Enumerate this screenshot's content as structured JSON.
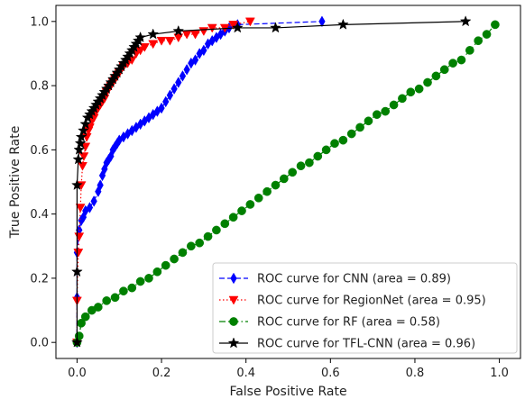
{
  "chart_data": {
    "type": "line",
    "title": "",
    "xlabel": "False Positive Rate",
    "ylabel": "True Positive Rate",
    "xlim": [
      -0.05,
      1.05
    ],
    "ylim": [
      -0.05,
      1.05
    ],
    "x_ticks": [
      0.0,
      0.2,
      0.4,
      0.6,
      0.8,
      1.0
    ],
    "y_ticks": [
      0.0,
      0.2,
      0.4,
      0.6,
      0.8,
      1.0
    ],
    "x_tick_labels": [
      "0.0",
      "0.2",
      "0.4",
      "0.6",
      "0.8",
      "1.0"
    ],
    "y_tick_labels": [
      "0.0",
      "0.2",
      "0.4",
      "0.6",
      "0.8",
      "1.0"
    ],
    "grid": false,
    "legend_position": "lower-right",
    "series": [
      {
        "name": "ROC curve for CNN (area = 0.89)",
        "color": "#0000ff",
        "line_style": "dashed",
        "marker": "diamond",
        "x": [
          0.0,
          0.0,
          0.0,
          0.005,
          0.01,
          0.015,
          0.02,
          0.03,
          0.04,
          0.05,
          0.055,
          0.06,
          0.065,
          0.07,
          0.075,
          0.08,
          0.085,
          0.09,
          0.095,
          0.1,
          0.11,
          0.12,
          0.13,
          0.14,
          0.15,
          0.16,
          0.17,
          0.18,
          0.19,
          0.2,
          0.21,
          0.22,
          0.23,
          0.24,
          0.25,
          0.26,
          0.27,
          0.28,
          0.29,
          0.3,
          0.31,
          0.32,
          0.33,
          0.34,
          0.35,
          0.36,
          0.38,
          0.58
        ],
        "y": [
          0.0,
          0.14,
          0.28,
          0.35,
          0.38,
          0.39,
          0.41,
          0.42,
          0.44,
          0.47,
          0.49,
          0.52,
          0.54,
          0.56,
          0.57,
          0.58,
          0.6,
          0.61,
          0.62,
          0.63,
          0.64,
          0.65,
          0.66,
          0.67,
          0.68,
          0.69,
          0.7,
          0.71,
          0.72,
          0.73,
          0.75,
          0.77,
          0.79,
          0.81,
          0.83,
          0.85,
          0.87,
          0.88,
          0.9,
          0.91,
          0.93,
          0.94,
          0.95,
          0.96,
          0.97,
          0.98,
          0.99,
          1.0
        ]
      },
      {
        "name": "ROC curve for RegionNet (area = 0.95)",
        "color": "#ff0000",
        "line_style": "dotted",
        "marker": "triangle-down",
        "x": [
          0.0,
          0.0,
          0.003,
          0.005,
          0.008,
          0.01,
          0.013,
          0.016,
          0.02,
          0.023,
          0.027,
          0.03,
          0.035,
          0.04,
          0.045,
          0.05,
          0.055,
          0.06,
          0.065,
          0.07,
          0.075,
          0.08,
          0.085,
          0.09,
          0.095,
          0.1,
          0.11,
          0.12,
          0.13,
          0.14,
          0.15,
          0.16,
          0.18,
          0.2,
          0.22,
          0.24,
          0.26,
          0.28,
          0.3,
          0.32,
          0.35,
          0.37,
          0.41
        ],
        "y": [
          0.0,
          0.13,
          0.28,
          0.33,
          0.42,
          0.49,
          0.55,
          0.58,
          0.61,
          0.64,
          0.66,
          0.67,
          0.69,
          0.7,
          0.72,
          0.73,
          0.74,
          0.75,
          0.76,
          0.78,
          0.79,
          0.8,
          0.81,
          0.82,
          0.83,
          0.84,
          0.86,
          0.87,
          0.88,
          0.9,
          0.91,
          0.92,
          0.93,
          0.94,
          0.94,
          0.95,
          0.96,
          0.96,
          0.97,
          0.98,
          0.98,
          0.99,
          1.0
        ]
      },
      {
        "name": "ROC curve for RF (area = 0.58)",
        "color": "#008000",
        "line_style": "dash-dot",
        "marker": "circle",
        "x": [
          0.0,
          0.005,
          0.01,
          0.02,
          0.035,
          0.05,
          0.07,
          0.09,
          0.11,
          0.13,
          0.15,
          0.17,
          0.19,
          0.21,
          0.23,
          0.25,
          0.27,
          0.29,
          0.31,
          0.33,
          0.35,
          0.37,
          0.39,
          0.41,
          0.43,
          0.45,
          0.47,
          0.49,
          0.51,
          0.53,
          0.55,
          0.57,
          0.59,
          0.61,
          0.63,
          0.65,
          0.67,
          0.69,
          0.71,
          0.73,
          0.75,
          0.77,
          0.79,
          0.81,
          0.83,
          0.85,
          0.87,
          0.89,
          0.91,
          0.93,
          0.95,
          0.97,
          0.99
        ],
        "y": [
          0.0,
          0.02,
          0.06,
          0.08,
          0.1,
          0.11,
          0.13,
          0.14,
          0.16,
          0.17,
          0.19,
          0.2,
          0.22,
          0.24,
          0.26,
          0.28,
          0.3,
          0.31,
          0.33,
          0.35,
          0.37,
          0.39,
          0.41,
          0.43,
          0.45,
          0.47,
          0.49,
          0.51,
          0.53,
          0.55,
          0.56,
          0.58,
          0.6,
          0.62,
          0.63,
          0.65,
          0.67,
          0.69,
          0.71,
          0.72,
          0.74,
          0.76,
          0.78,
          0.79,
          0.81,
          0.83,
          0.85,
          0.87,
          0.88,
          0.91,
          0.94,
          0.96,
          0.99
        ]
      },
      {
        "name": "ROC curve for TFL-CNN (area = 0.96)",
        "color": "#000000",
        "line_style": "solid",
        "marker": "star",
        "x": [
          0.0,
          0.0,
          0.0,
          0.003,
          0.005,
          0.008,
          0.01,
          0.015,
          0.02,
          0.025,
          0.03,
          0.035,
          0.04,
          0.045,
          0.05,
          0.055,
          0.06,
          0.065,
          0.07,
          0.075,
          0.08,
          0.085,
          0.09,
          0.095,
          0.1,
          0.105,
          0.11,
          0.115,
          0.12,
          0.125,
          0.13,
          0.135,
          0.14,
          0.145,
          0.15,
          0.18,
          0.24,
          0.38,
          0.47,
          0.63,
          0.92
        ],
        "y": [
          0.0,
          0.22,
          0.49,
          0.57,
          0.6,
          0.62,
          0.64,
          0.66,
          0.68,
          0.7,
          0.71,
          0.72,
          0.73,
          0.74,
          0.75,
          0.76,
          0.77,
          0.78,
          0.79,
          0.8,
          0.81,
          0.82,
          0.83,
          0.84,
          0.85,
          0.86,
          0.87,
          0.88,
          0.89,
          0.9,
          0.91,
          0.92,
          0.93,
          0.94,
          0.95,
          0.96,
          0.97,
          0.98,
          0.98,
          0.99,
          1.0
        ]
      }
    ]
  }
}
